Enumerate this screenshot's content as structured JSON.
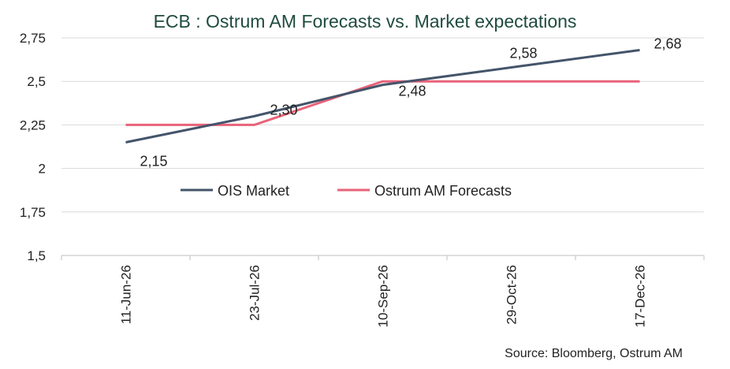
{
  "chart_data": {
    "type": "line",
    "title": "ECB :  Ostrum AM Forecasts vs. Market expectations",
    "source": "Source: Bloomberg, Ostrum AM",
    "categories": [
      "11-Jun-26",
      "23-Jul-26",
      "10-Sep-26",
      "29-Oct-26",
      "17-Dec-26"
    ],
    "ylim": [
      1.5,
      2.75
    ],
    "yticks": [
      "1,5",
      "1,75",
      "2",
      "2,25",
      "2,5",
      "2,75"
    ],
    "ytick_values": [
      1.5,
      1.75,
      2.0,
      2.25,
      2.5,
      2.75
    ],
    "legend_position": "center",
    "grid": true,
    "series": [
      {
        "name": "OIS Market",
        "color": "#44546a",
        "values": [
          2.15,
          2.3,
          2.48,
          2.58,
          2.68
        ],
        "labels": [
          "2,15",
          "2,30",
          "2,48",
          "2,58",
          "2,68"
        ]
      },
      {
        "name": "Ostrum AM Forecasts",
        "color": "#e8637a",
        "values": [
          2.25,
          2.25,
          2.5,
          2.5,
          2.5
        ],
        "labels": []
      }
    ]
  }
}
